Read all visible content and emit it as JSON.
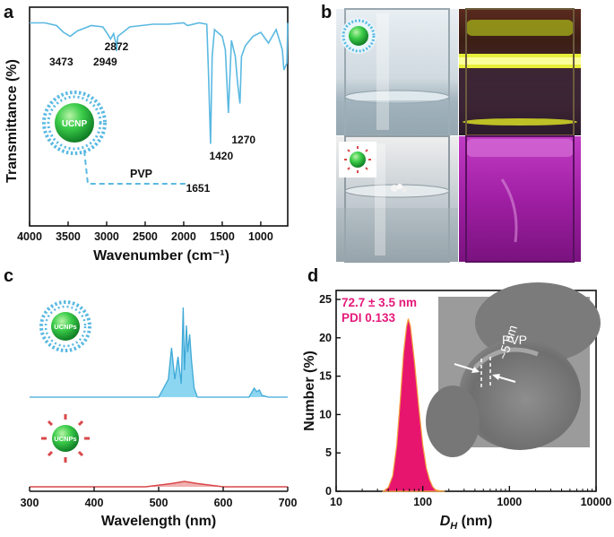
{
  "panel_labels": {
    "a": "a",
    "b": "b",
    "c": "c",
    "d": "d"
  },
  "particle_labels": {
    "ucnp": "UCNP",
    "ucnps": "UCNPs",
    "coating": "PVP"
  },
  "colors": {
    "ftir": "#5ab9e2",
    "pvp_spectrum": "#67c8ee",
    "bare_spectrum": "#d9484a",
    "dls": "#e8156f",
    "dls_text": "#e5197a"
  },
  "chart_data": [
    {
      "type": "line",
      "panel": "a",
      "title": "",
      "xlabel": "Wavenumber (cm⁻¹)",
      "ylabel": "Transmittance (%)",
      "xlim": [
        4000,
        650
      ],
      "xticks": [
        4000,
        3500,
        3000,
        2500,
        2000,
        1500,
        1000
      ],
      "x": [
        4000,
        3800,
        3650,
        3560,
        3473,
        3380,
        3200,
        3050,
        2990,
        2949,
        2910,
        2880,
        2872,
        2855,
        2700,
        2400,
        2200,
        2000,
        1950,
        1800,
        1700,
        1680,
        1651,
        1630,
        1600,
        1500,
        1460,
        1420,
        1400,
        1380,
        1330,
        1300,
        1270,
        1250,
        1200,
        1100,
        1000,
        900,
        800,
        720,
        700,
        660,
        650
      ],
      "y": [
        95,
        95,
        93,
        88,
        85,
        89,
        93,
        92,
        87,
        83,
        87,
        80,
        74,
        85,
        92,
        94,
        94,
        95,
        93,
        95,
        94,
        60,
        5,
        70,
        90,
        85,
        75,
        28,
        55,
        82,
        70,
        50,
        35,
        70,
        78,
        85,
        88,
        80,
        90,
        75,
        60,
        65,
        95
      ],
      "annotations": [
        {
          "label": "3473",
          "x": 3473
        },
        {
          "label": "2949",
          "x": 2949
        },
        {
          "label": "2872",
          "x": 2872
        },
        {
          "label": "1651",
          "x": 1651
        },
        {
          "label": "1420",
          "x": 1420
        },
        {
          "label": "1270",
          "x": 1270
        }
      ]
    },
    {
      "type": "line",
      "panel": "c",
      "title": "",
      "xlabel": "Wavelength (nm)",
      "ylabel": "",
      "xlim": [
        300,
        700
      ],
      "xticks": [
        300,
        400,
        500,
        600,
        700
      ],
      "series": [
        {
          "name": "PVP-coated UCNPs",
          "x": [
            300,
            500,
            515,
            520,
            525,
            530,
            535,
            538,
            540,
            543,
            545,
            548,
            551,
            555,
            560,
            600,
            640,
            648,
            652,
            656,
            660,
            670,
            700
          ],
          "y": [
            0,
            0,
            0.2,
            0.55,
            0.2,
            0.45,
            0.15,
            1.0,
            0.3,
            0.8,
            0.5,
            0.7,
            0.4,
            0.1,
            0,
            0,
            0,
            0.1,
            0.06,
            0.08,
            0.02,
            0,
            0
          ]
        },
        {
          "name": "Bare UCNPs",
          "x": [
            300,
            480,
            520,
            540,
            560,
            600,
            700
          ],
          "y": [
            0,
            0,
            0.03,
            0.05,
            0.03,
            0,
            0
          ]
        }
      ]
    },
    {
      "type": "area",
      "panel": "d",
      "title": "",
      "xlabel": "D_H (nm)",
      "ylabel": "Number (%)",
      "xscale": "log",
      "xlim": [
        10,
        10000
      ],
      "ylim": [
        0,
        25
      ],
      "xticks": [
        10,
        100,
        1000,
        10000
      ],
      "yticks": [
        0,
        5,
        10,
        15,
        20,
        25
      ],
      "x": [
        35,
        40,
        45,
        50,
        55,
        60,
        65,
        68,
        72,
        80,
        90,
        100,
        110,
        120,
        130,
        140,
        160,
        180
      ],
      "y": [
        0,
        0.5,
        2,
        6,
        12,
        18,
        21.5,
        22.5,
        21.5,
        17,
        11,
        6,
        3,
        1.5,
        0.6,
        0.2,
        0.05,
        0
      ],
      "annotations": [
        {
          "label": "72.7 ± 3.5 nm"
        },
        {
          "label": "PDI 0.133"
        }
      ],
      "inset": {
        "label": "PVP",
        "thickness": "~5 nm"
      }
    }
  ]
}
